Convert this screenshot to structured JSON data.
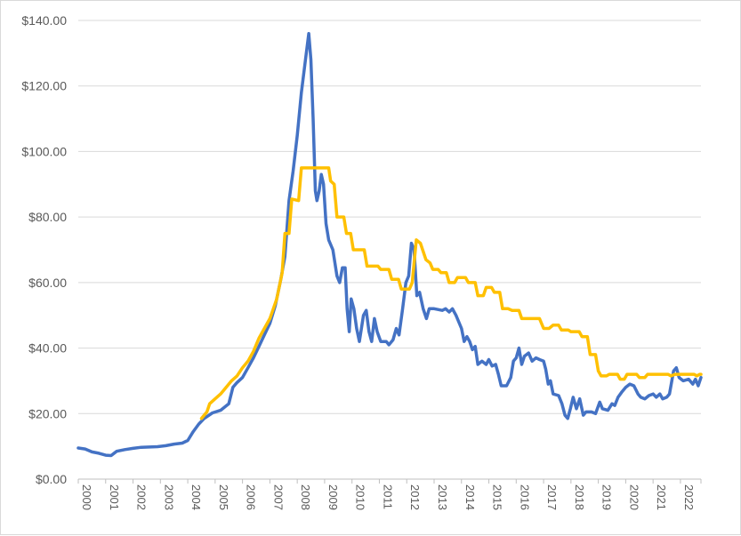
{
  "chart_data": {
    "type": "line",
    "title": "",
    "xlabel": "",
    "ylabel": "",
    "xlim": [
      2000,
      2022.75
    ],
    "ylim": [
      0,
      140
    ],
    "grid": "horizontal",
    "y_ticks": [
      0,
      20,
      40,
      60,
      80,
      100,
      120,
      140
    ],
    "y_tick_labels": [
      "$0.00",
      "$20.00",
      "$40.00",
      "$60.00",
      "$80.00",
      "$100.00",
      "$120.00",
      "$140.00"
    ],
    "x_tick_labels": [
      "2000",
      "2001",
      "2002",
      "2003",
      "2004",
      "2005",
      "2006",
      "2007",
      "2008",
      "2009",
      "2010",
      "2011",
      "2012",
      "2013",
      "2014",
      "2015",
      "2016",
      "2017",
      "2018",
      "2019",
      "2020",
      "2021",
      "2022"
    ],
    "series": [
      {
        "color": "#4472c4",
        "points": [
          [
            2000.0,
            9.5
          ],
          [
            2000.25,
            9.2
          ],
          [
            2000.5,
            8.3
          ],
          [
            2000.75,
            7.9
          ],
          [
            2001.0,
            7.3
          ],
          [
            2001.2,
            7.2
          ],
          [
            2001.4,
            8.5
          ],
          [
            2001.7,
            9.0
          ],
          [
            2002.0,
            9.4
          ],
          [
            2002.3,
            9.7
          ],
          [
            2002.6,
            9.8
          ],
          [
            2002.9,
            9.9
          ],
          [
            2003.2,
            10.2
          ],
          [
            2003.5,
            10.7
          ],
          [
            2003.8,
            11.0
          ],
          [
            2004.0,
            11.8
          ],
          [
            2004.2,
            14.5
          ],
          [
            2004.4,
            16.8
          ],
          [
            2004.6,
            18.5
          ],
          [
            2004.9,
            20.2
          ],
          [
            2005.2,
            21.0
          ],
          [
            2005.5,
            23.0
          ],
          [
            2005.65,
            28.0
          ],
          [
            2005.8,
            29.5
          ],
          [
            2006.0,
            31.0
          ],
          [
            2006.2,
            34.0
          ],
          [
            2006.4,
            37.0
          ],
          [
            2006.6,
            40.5
          ],
          [
            2006.8,
            44.0
          ],
          [
            2007.0,
            47.5
          ],
          [
            2007.2,
            53.0
          ],
          [
            2007.4,
            61.0
          ],
          [
            2007.55,
            68.0
          ],
          [
            2007.7,
            85.0
          ],
          [
            2007.85,
            94.0
          ],
          [
            2008.0,
            105.0
          ],
          [
            2008.15,
            118.0
          ],
          [
            2008.3,
            128.0
          ],
          [
            2008.42,
            136.0
          ],
          [
            2008.5,
            128.0
          ],
          [
            2008.58,
            110.0
          ],
          [
            2008.66,
            88.0
          ],
          [
            2008.72,
            85.0
          ],
          [
            2008.8,
            88.0
          ],
          [
            2008.88,
            93.0
          ],
          [
            2008.96,
            90.0
          ],
          [
            2009.05,
            78.0
          ],
          [
            2009.15,
            73.0
          ],
          [
            2009.3,
            70.0
          ],
          [
            2009.45,
            62.0
          ],
          [
            2009.55,
            60.0
          ],
          [
            2009.65,
            64.5
          ],
          [
            2009.75,
            64.5
          ],
          [
            2009.82,
            52.0
          ],
          [
            2009.9,
            45.0
          ],
          [
            2009.97,
            55.0
          ],
          [
            2010.07,
            52.0
          ],
          [
            2010.17,
            46.0
          ],
          [
            2010.27,
            42.0
          ],
          [
            2010.42,
            50.0
          ],
          [
            2010.52,
            51.5
          ],
          [
            2010.62,
            45.0
          ],
          [
            2010.72,
            42.0
          ],
          [
            2010.82,
            49.0
          ],
          [
            2010.92,
            45.0
          ],
          [
            2011.05,
            42.0
          ],
          [
            2011.25,
            42.0
          ],
          [
            2011.35,
            41.0
          ],
          [
            2011.5,
            42.5
          ],
          [
            2011.62,
            46.0
          ],
          [
            2011.72,
            44.0
          ],
          [
            2011.85,
            52.0
          ],
          [
            2011.97,
            60.0
          ],
          [
            2012.07,
            62.0
          ],
          [
            2012.17,
            72.0
          ],
          [
            2012.27,
            70.0
          ],
          [
            2012.37,
            56.0
          ],
          [
            2012.47,
            57.0
          ],
          [
            2012.6,
            52.0
          ],
          [
            2012.72,
            49.0
          ],
          [
            2012.82,
            52.0
          ],
          [
            2013.0,
            52.0
          ],
          [
            2013.3,
            51.5
          ],
          [
            2013.42,
            52.0
          ],
          [
            2013.55,
            51.0
          ],
          [
            2013.67,
            52.0
          ],
          [
            2013.8,
            50.0
          ],
          [
            2014.0,
            46.0
          ],
          [
            2014.1,
            42.0
          ],
          [
            2014.2,
            43.5
          ],
          [
            2014.3,
            42.0
          ],
          [
            2014.4,
            39.5
          ],
          [
            2014.5,
            40.5
          ],
          [
            2014.6,
            35.0
          ],
          [
            2014.75,
            36.0
          ],
          [
            2014.9,
            35.0
          ],
          [
            2015.0,
            36.5
          ],
          [
            2015.12,
            34.5
          ],
          [
            2015.25,
            35.0
          ],
          [
            2015.35,
            32.0
          ],
          [
            2015.45,
            28.5
          ],
          [
            2015.65,
            28.5
          ],
          [
            2015.8,
            31.0
          ],
          [
            2015.9,
            36.0
          ],
          [
            2016.0,
            37.0
          ],
          [
            2016.1,
            40.0
          ],
          [
            2016.2,
            35.0
          ],
          [
            2016.3,
            37.5
          ],
          [
            2016.45,
            38.5
          ],
          [
            2016.58,
            36.0
          ],
          [
            2016.72,
            37.0
          ],
          [
            2016.85,
            36.5
          ],
          [
            2017.0,
            36.0
          ],
          [
            2017.08,
            33.5
          ],
          [
            2017.17,
            29.0
          ],
          [
            2017.25,
            30.0
          ],
          [
            2017.35,
            26.0
          ],
          [
            2017.55,
            25.5
          ],
          [
            2017.67,
            23.0
          ],
          [
            2017.78,
            19.5
          ],
          [
            2017.88,
            18.5
          ],
          [
            2017.98,
            21.5
          ],
          [
            2018.08,
            25.0
          ],
          [
            2018.2,
            21.5
          ],
          [
            2018.32,
            24.5
          ],
          [
            2018.45,
            19.5
          ],
          [
            2018.55,
            20.5
          ],
          [
            2018.75,
            20.5
          ],
          [
            2018.9,
            20.0
          ],
          [
            2019.05,
            23.5
          ],
          [
            2019.15,
            21.5
          ],
          [
            2019.35,
            21.0
          ],
          [
            2019.5,
            23.0
          ],
          [
            2019.6,
            22.5
          ],
          [
            2019.72,
            25.0
          ],
          [
            2019.85,
            26.5
          ],
          [
            2020.0,
            28.0
          ],
          [
            2020.15,
            29.0
          ],
          [
            2020.3,
            28.5
          ],
          [
            2020.45,
            26.0
          ],
          [
            2020.55,
            25.0
          ],
          [
            2020.7,
            24.5
          ],
          [
            2020.85,
            25.5
          ],
          [
            2021.0,
            26.0
          ],
          [
            2021.12,
            25.0
          ],
          [
            2021.25,
            26.0
          ],
          [
            2021.35,
            24.5
          ],
          [
            2021.5,
            25.0
          ],
          [
            2021.6,
            26.0
          ],
          [
            2021.75,
            33.0
          ],
          [
            2021.85,
            34.0
          ],
          [
            2021.95,
            31.0
          ],
          [
            2022.1,
            30.0
          ],
          [
            2022.3,
            30.5
          ],
          [
            2022.45,
            29.0
          ],
          [
            2022.55,
            30.5
          ],
          [
            2022.65,
            28.5
          ],
          [
            2022.75,
            31.0
          ]
        ]
      },
      {
        "color": "#ffc000",
        "points": [
          [
            2004.5,
            18.5
          ],
          [
            2004.7,
            20.5
          ],
          [
            2004.8,
            23.0
          ],
          [
            2005.0,
            24.5
          ],
          [
            2005.2,
            26.0
          ],
          [
            2005.4,
            28.0
          ],
          [
            2005.6,
            30.0
          ],
          [
            2005.8,
            31.5
          ],
          [
            2006.0,
            34.0
          ],
          [
            2006.2,
            36.0
          ],
          [
            2006.4,
            39.0
          ],
          [
            2006.6,
            43.0
          ],
          [
            2006.8,
            46.0
          ],
          [
            2007.0,
            49.0
          ],
          [
            2007.25,
            55.0
          ],
          [
            2007.45,
            63.0
          ],
          [
            2007.55,
            75.0
          ],
          [
            2007.7,
            75.0
          ],
          [
            2007.8,
            85.5
          ],
          [
            2008.05,
            85.0
          ],
          [
            2008.15,
            95.0
          ],
          [
            2009.15,
            95.0
          ],
          [
            2009.22,
            91.0
          ],
          [
            2009.35,
            90.0
          ],
          [
            2009.45,
            80.0
          ],
          [
            2009.7,
            80.0
          ],
          [
            2009.8,
            75.0
          ],
          [
            2009.95,
            75.0
          ],
          [
            2010.05,
            70.0
          ],
          [
            2010.45,
            70.0
          ],
          [
            2010.55,
            65.0
          ],
          [
            2010.95,
            65.0
          ],
          [
            2011.05,
            64.0
          ],
          [
            2011.35,
            64.0
          ],
          [
            2011.45,
            61.0
          ],
          [
            2011.7,
            61.0
          ],
          [
            2011.8,
            58.0
          ],
          [
            2012.1,
            58.0
          ],
          [
            2012.2,
            60.0
          ],
          [
            2012.35,
            73.0
          ],
          [
            2012.5,
            72.0
          ],
          [
            2012.7,
            67.0
          ],
          [
            2012.85,
            66.0
          ],
          [
            2012.95,
            64.0
          ],
          [
            2013.15,
            64.0
          ],
          [
            2013.25,
            63.0
          ],
          [
            2013.45,
            63.0
          ],
          [
            2013.55,
            60.0
          ],
          [
            2013.75,
            60.0
          ],
          [
            2013.85,
            61.5
          ],
          [
            2014.15,
            61.5
          ],
          [
            2014.25,
            60.0
          ],
          [
            2014.5,
            60.0
          ],
          [
            2014.6,
            56.0
          ],
          [
            2014.8,
            56.0
          ],
          [
            2014.9,
            58.5
          ],
          [
            2015.1,
            58.5
          ],
          [
            2015.2,
            57.0
          ],
          [
            2015.4,
            57.0
          ],
          [
            2015.5,
            52.0
          ],
          [
            2015.7,
            52.0
          ],
          [
            2015.85,
            51.5
          ],
          [
            2016.1,
            51.5
          ],
          [
            2016.2,
            49.0
          ],
          [
            2016.5,
            49.0
          ],
          [
            2016.6,
            49.0
          ],
          [
            2016.85,
            49.0
          ],
          [
            2017.0,
            46.0
          ],
          [
            2017.2,
            46.0
          ],
          [
            2017.35,
            47.0
          ],
          [
            2017.55,
            47.0
          ],
          [
            2017.65,
            45.5
          ],
          [
            2017.9,
            45.5
          ],
          [
            2018.0,
            45.0
          ],
          [
            2018.3,
            45.0
          ],
          [
            2018.4,
            43.5
          ],
          [
            2018.6,
            43.5
          ],
          [
            2018.7,
            38.0
          ],
          [
            2018.9,
            38.0
          ],
          [
            2019.0,
            33.0
          ],
          [
            2019.1,
            31.5
          ],
          [
            2019.3,
            31.5
          ],
          [
            2019.4,
            32.0
          ],
          [
            2019.7,
            32.0
          ],
          [
            2019.8,
            30.5
          ],
          [
            2019.95,
            30.5
          ],
          [
            2020.05,
            32.0
          ],
          [
            2020.4,
            32.0
          ],
          [
            2020.5,
            31.0
          ],
          [
            2020.7,
            31.0
          ],
          [
            2020.8,
            32.0
          ],
          [
            2021.55,
            32.0
          ],
          [
            2021.65,
            31.5
          ],
          [
            2021.8,
            32.0
          ],
          [
            2022.5,
            32.0
          ],
          [
            2022.6,
            31.5
          ],
          [
            2022.7,
            32.0
          ],
          [
            2022.75,
            32.0
          ]
        ]
      }
    ]
  }
}
